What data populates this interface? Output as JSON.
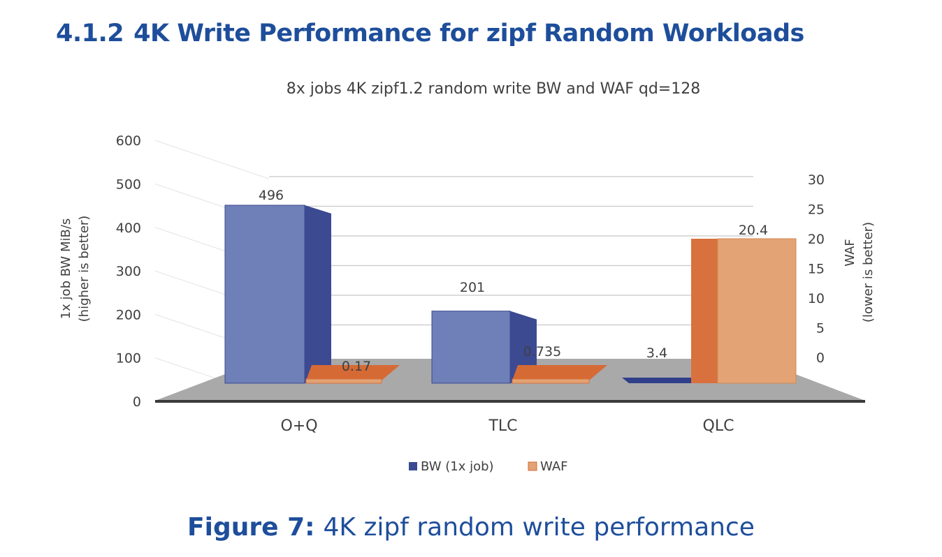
{
  "heading": {
    "number": "4.1.2",
    "title": "4K Write Performance for zipf Random Workloads"
  },
  "caption": {
    "label": "Figure 7:",
    "text": "4K zipf random write performance"
  },
  "colors": {
    "bw": "#6f7fb8",
    "bw_dark": "#3b4a91",
    "bw_top": "#2f3f8a",
    "waf": "#e3a374",
    "waf_dark": "#d9713f",
    "waf_top": "#d56a35",
    "floor": "#a9a9a9",
    "axis": "#333333",
    "text": "#404040",
    "heading": "#1e4e9b"
  },
  "chart_data": {
    "type": "bar",
    "title": "8x jobs 4K zipf1.2 random write BW and WAF qd=128",
    "categories": [
      "O+Q",
      "TLC",
      "QLC"
    ],
    "series": [
      {
        "name": "BW (1x job)",
        "axis": "left",
        "values": [
          496,
          201,
          3.4
        ],
        "labels": [
          "496",
          "201",
          "3.4"
        ]
      },
      {
        "name": "WAF",
        "axis": "right",
        "values": [
          0.17,
          0.735,
          20.4
        ],
        "labels": [
          "0.17",
          "0.735",
          "20.4"
        ]
      }
    ],
    "ylabel": "1x job BW MiB/s",
    "ylabel_note": "(higher is better)",
    "ylim": [
      0,
      600
    ],
    "yticks": [
      "0",
      "100",
      "200",
      "300",
      "400",
      "500",
      "600"
    ],
    "y2label": "WAF",
    "y2label_note": "(lower is better)",
    "y2lim": [
      0,
      30
    ],
    "y2ticks": [
      "0",
      "5",
      "10",
      "15",
      "20",
      "25",
      "30"
    ],
    "legend_position": "bottom",
    "grid": true,
    "style": "3d-column"
  }
}
